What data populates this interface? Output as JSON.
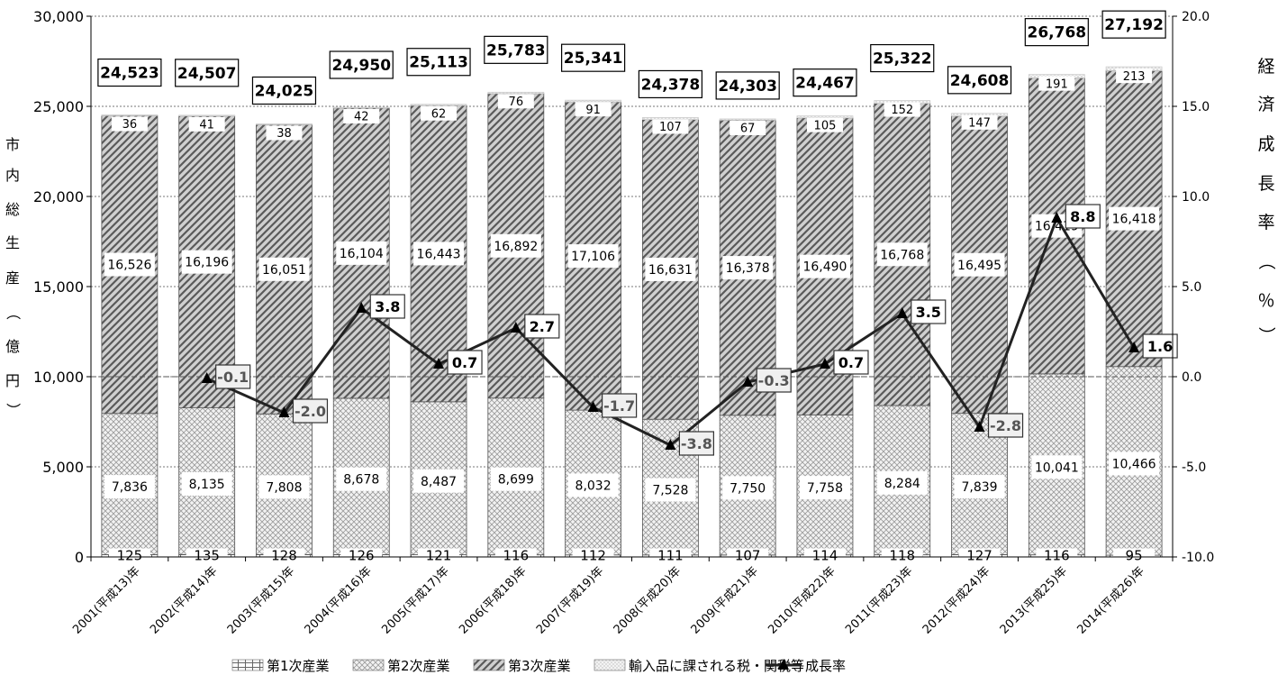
{
  "chart_data": {
    "type": "bar",
    "stacked": true,
    "categories": [
      "2001(平成13)年",
      "2002(平成14)年",
      "2003(平成15)年",
      "2004(平成16)年",
      "2005(平成17)年",
      "2006(平成18)年",
      "2007(平成19)年",
      "2008(平成20)年",
      "2009(平成21)年",
      "2010(平成22)年",
      "2011(平成23)年",
      "2012(平成24)年",
      "2013(平成25)年",
      "2014(平成26)年"
    ],
    "series": [
      {
        "name": "第1次産業",
        "values": [
          125,
          135,
          128,
          126,
          121,
          116,
          112,
          111,
          107,
          114,
          118,
          127,
          116,
          95
        ]
      },
      {
        "name": "第2次産業",
        "values": [
          7836,
          8135,
          7808,
          8678,
          8487,
          8699,
          8032,
          7528,
          7750,
          7758,
          8284,
          7839,
          10041,
          10466
        ]
      },
      {
        "name": "第3次産業",
        "values": [
          16526,
          16196,
          16051,
          16104,
          16443,
          16892,
          17106,
          16631,
          16378,
          16490,
          16768,
          16495,
          16419,
          16418
        ]
      },
      {
        "name": "輸入品に課される税・関税等",
        "values": [
          36,
          41,
          38,
          42,
          62,
          76,
          91,
          107,
          67,
          105,
          152,
          147,
          191,
          213
        ]
      }
    ],
    "totals": [
      24523,
      24507,
      24025,
      24950,
      25113,
      25783,
      25341,
      24378,
      24303,
      24467,
      25322,
      24608,
      26768,
      27192
    ],
    "total_labels": [
      "24,523",
      "24,507",
      "24,025",
      "24,950",
      "25,113",
      "25,783",
      "25,341",
      "24,378",
      "24,303",
      "24,467",
      "25,322",
      "24,608",
      "26,768",
      "27,192"
    ],
    "growth": {
      "name": "成長率",
      "values": [
        null,
        -0.1,
        -2.0,
        3.8,
        0.7,
        2.7,
        -1.7,
        -3.8,
        -0.3,
        0.7,
        3.5,
        -2.8,
        8.8,
        1.6
      ],
      "labels": [
        "",
        "-0.1",
        "-2.0",
        "3.8",
        "0.7",
        "2.7",
        "-1.7",
        "-3.8",
        "-0.3",
        "0.7",
        "3.5",
        "-2.8",
        "8.8",
        "1.6"
      ]
    },
    "ylim": [
      0,
      30000
    ],
    "y_ticks": [
      "0",
      "5,000",
      "10,000",
      "15,000",
      "20,000",
      "25,000",
      "30,000"
    ],
    "y2lim": [
      -10,
      20
    ],
    "y2_ticks": [
      "-10.0",
      "-5.0",
      "0.0",
      "5.0",
      "10.0",
      "15.0",
      "20.0"
    ],
    "ylabel": "市内総生産（億円）",
    "y2label": "経済成長率（％）",
    "legend_position": "bottom",
    "grid": true,
    "colors": {
      "bar_border": "#555555",
      "line": "#222222",
      "grid": "#777777"
    }
  }
}
